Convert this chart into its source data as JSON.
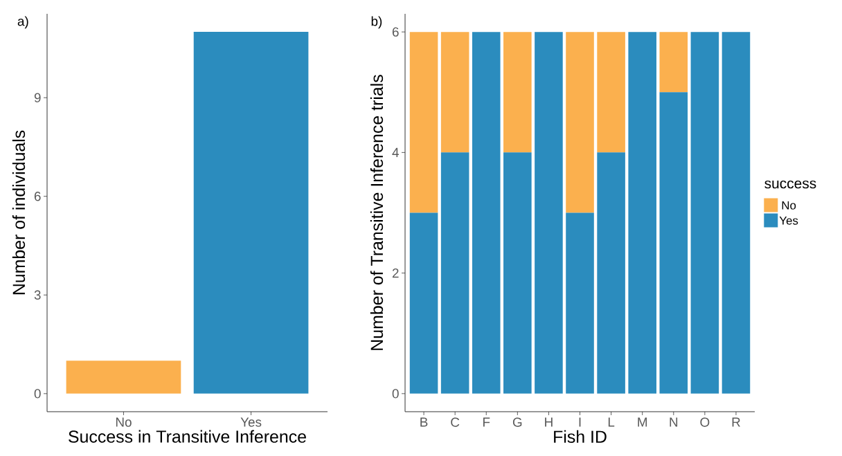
{
  "chart_data": [
    {
      "type": "bar",
      "categories": [
        "No",
        "Yes"
      ],
      "values": [
        1,
        11
      ],
      "colors": [
        "#fbb04e",
        "#2b8cbe"
      ],
      "xlabel": "Success in Transitive Inference",
      "ylabel": "Number of individuals",
      "ylim": [
        -0.55,
        11.55
      ],
      "yticks": [
        0,
        3,
        6,
        9
      ],
      "annotations": [
        "a)"
      ]
    },
    {
      "type": "bar",
      "stacked": true,
      "categories": [
        "B",
        "C",
        "F",
        "G",
        "H",
        "I",
        "L",
        "M",
        "N",
        "O",
        "R"
      ],
      "series": [
        {
          "name": "Yes",
          "color": "#2b8cbe",
          "values": [
            3,
            4,
            6,
            4,
            6,
            3,
            4,
            6,
            5,
            6,
            6
          ]
        },
        {
          "name": "No",
          "color": "#fbb04e",
          "values": [
            3,
            2,
            0,
            2,
            0,
            3,
            2,
            0,
            1,
            0,
            0
          ]
        }
      ],
      "xlabel": "Fish ID",
      "ylabel": "Number of Transitive Inference trials",
      "ylim": [
        -0.3,
        6.3
      ],
      "yticks": [
        0,
        2,
        4,
        6
      ],
      "legend": "right",
      "legend_title": "success",
      "annotations": [
        "b)"
      ]
    }
  ]
}
